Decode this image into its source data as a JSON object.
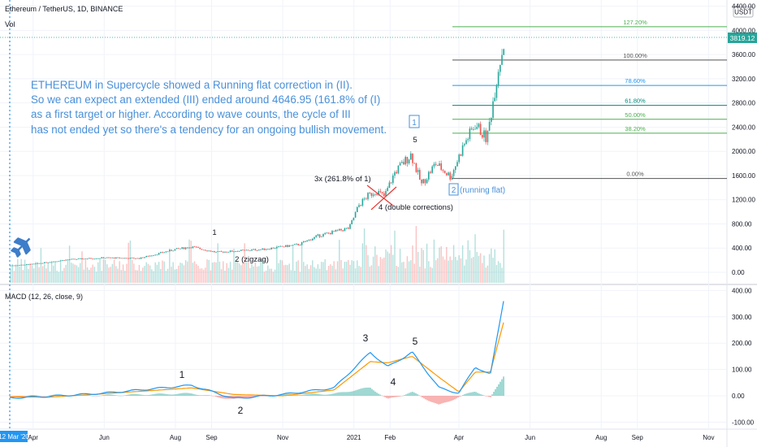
{
  "header": {
    "symbol": "Ethereum / TetherUS, 1D, BINANCE",
    "vol_label": "Vol",
    "quote_currency": "USDT",
    "last_price": "3819.12"
  },
  "annotation": {
    "lines": [
      "ETHEREUM in  Supercycle showed a Running flat correction in (II).",
      "So we can expect an extended (III) ended around 4646.95 (161.8% of (I)",
      "as a first target or higher.  According to wave counts, the cycle of III",
      "has not ended yet so there's a tendency for an ongoing bullish movement."
    ]
  },
  "price_labels": {
    "wave1": "1",
    "zigzag": "2 (zigzag)",
    "ext": "3x (261.8% of 1)",
    "wave5": "5",
    "double": "4 (double corrections)",
    "boxed1": "1",
    "boxed2": "2",
    "running": "(running flat)"
  },
  "fib_levels": [
    {
      "label": "127.20%",
      "value": 4060,
      "color": "#4caf50"
    },
    {
      "label": "100.00%",
      "value": 3510,
      "color": "#555555"
    },
    {
      "label": "78.60%",
      "value": 3090,
      "color": "#2196f3"
    },
    {
      "label": "61.80%",
      "value": 2760,
      "color": "#00897b"
    },
    {
      "label": "50.00%",
      "value": 2530,
      "color": "#4caf50"
    },
    {
      "label": "38.20%",
      "value": 2300,
      "color": "#4caf50"
    },
    {
      "label": "0.00%",
      "value": 1550,
      "color": "#555555"
    }
  ],
  "macd": {
    "title": "MACD (12, 26, close, 9)",
    "labels": {
      "w1": "1",
      "w2": "2",
      "w3": "3",
      "w4": "4",
      "w5": "5"
    }
  },
  "chart_data": {
    "type": "candlestick",
    "x_axis": {
      "ticks": [
        "12 Mar '20",
        "Apr",
        "Jun",
        "Aug",
        "Sep",
        "Nov",
        "2021",
        "Feb",
        "Apr",
        "Jun",
        "Aug",
        "Sep",
        "Nov"
      ]
    },
    "price_axis": {
      "ticks": [
        "4400.00",
        "4000.00",
        "3600.00",
        "3200.00",
        "2800.00",
        "2400.00",
        "2000.00",
        "1600.00",
        "1200.00",
        "800.00",
        "400.00",
        "0.00"
      ]
    },
    "macd_axis": {
      "ticks": [
        "400.00",
        "300.00",
        "200.00",
        "100.00",
        "0.00",
        "-100.00"
      ]
    },
    "price_path": [
      {
        "date": "2020-03-12",
        "close": 110
      },
      {
        "date": "2020-04-01",
        "close": 135
      },
      {
        "date": "2020-05-01",
        "close": 210
      },
      {
        "date": "2020-06-01",
        "close": 240
      },
      {
        "date": "2020-07-01",
        "close": 230
      },
      {
        "date": "2020-08-01",
        "close": 380
      },
      {
        "date": "2020-08-15",
        "close": 420
      },
      {
        "date": "2020-09-05",
        "close": 330
      },
      {
        "date": "2020-09-20",
        "close": 350
      },
      {
        "date": "2020-10-15",
        "close": 380
      },
      {
        "date": "2020-11-15",
        "close": 460
      },
      {
        "date": "2020-12-01",
        "close": 600
      },
      {
        "date": "2020-12-28",
        "close": 730
      },
      {
        "date": "2021-01-05",
        "close": 1100
      },
      {
        "date": "2021-01-12",
        "close": 1250
      },
      {
        "date": "2021-01-20",
        "close": 1350
      },
      {
        "date": "2021-01-27",
        "close": 1250
      },
      {
        "date": "2021-02-05",
        "close": 1650
      },
      {
        "date": "2021-02-19",
        "close": 1950
      },
      {
        "date": "2021-02-28",
        "close": 1450
      },
      {
        "date": "2021-03-12",
        "close": 1800
      },
      {
        "date": "2021-03-25",
        "close": 1580
      },
      {
        "date": "2021-04-05",
        "close": 2100
      },
      {
        "date": "2021-04-15",
        "close": 2450
      },
      {
        "date": "2021-04-25",
        "close": 2200
      },
      {
        "date": "2021-05-05",
        "close": 3400
      },
      {
        "date": "2021-05-10",
        "close": 3819
      }
    ],
    "macd_path": [
      {
        "date": "2020-03-12",
        "macd": -8,
        "signal": -4
      },
      {
        "date": "2020-04-15",
        "macd": -2,
        "signal": -5
      },
      {
        "date": "2020-06-01",
        "macd": 10,
        "signal": 8
      },
      {
        "date": "2020-08-15",
        "macd": 40,
        "signal": 30
      },
      {
        "date": "2020-09-20",
        "macd": -10,
        "signal": 5
      },
      {
        "date": "2020-11-01",
        "macd": 5,
        "signal": 0
      },
      {
        "date": "2020-12-15",
        "macd": 30,
        "signal": 22
      },
      {
        "date": "2021-01-15",
        "macd": 165,
        "signal": 130
      },
      {
        "date": "2021-01-30",
        "macd": 110,
        "signal": 125
      },
      {
        "date": "2021-02-20",
        "macd": 165,
        "signal": 150
      },
      {
        "date": "2021-03-15",
        "macd": 30,
        "signal": 70
      },
      {
        "date": "2021-04-01",
        "macd": 10,
        "signal": 15
      },
      {
        "date": "2021-04-15",
        "macd": 110,
        "signal": 90
      },
      {
        "date": "2021-04-28",
        "macd": 80,
        "signal": 90
      },
      {
        "date": "2021-05-10",
        "macd": 380,
        "signal": 290
      }
    ]
  }
}
